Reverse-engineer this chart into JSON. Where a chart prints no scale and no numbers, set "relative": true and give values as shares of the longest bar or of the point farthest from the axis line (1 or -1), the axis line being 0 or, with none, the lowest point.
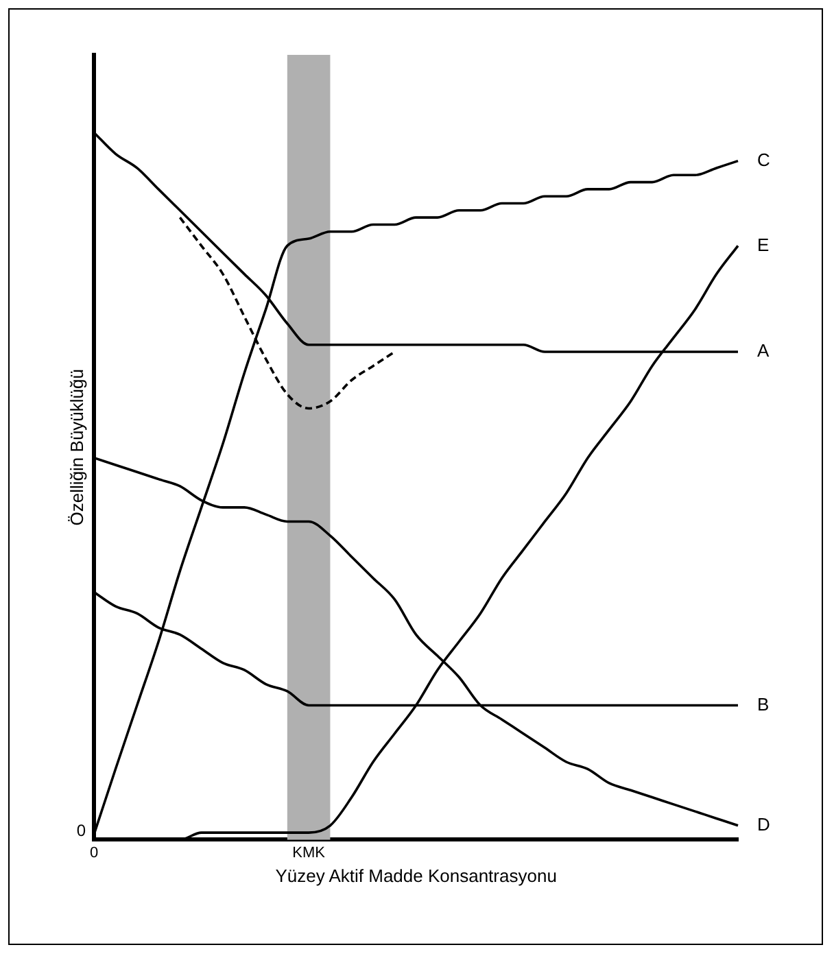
{
  "chart_data": {
    "type": "line",
    "relative": true,
    "xlabel": "Yüzey Aktif Madde Konsantrasyonu",
    "ylabel": "Özelliğin Büyüklüğü",
    "categories": [
      "0",
      null,
      null,
      null,
      null,
      null,
      null,
      null,
      null,
      null,
      "KMK",
      null,
      null,
      null,
      null,
      null,
      null,
      null,
      null,
      null,
      null,
      null,
      null,
      null,
      null,
      null,
      null,
      null,
      null,
      null,
      null
    ],
    "ref_lines": [
      {
        "axis": "x",
        "value": "KMK",
        "color": "#b0b0b0"
      }
    ],
    "annotations": [
      {
        "text": "0",
        "x": "0",
        "y": 0
      }
    ],
    "grid": false,
    "legend": false,
    "marker": "none",
    "series": [
      {
        "name": "C",
        "color": "#000000",
        "values": [
          0.008,
          0.1,
          0.19,
          0.28,
          0.38,
          0.47,
          0.56,
          0.66,
          0.75,
          0.84,
          0.85,
          0.86,
          0.86,
          0.87,
          0.87,
          0.88,
          0.88,
          0.89,
          0.89,
          0.9,
          0.9,
          0.91,
          0.91,
          0.92,
          0.92,
          0.93,
          0.93,
          0.94,
          0.94,
          0.95,
          0.96
        ]
      },
      {
        "name": "E",
        "color": "#000000",
        "values": [
          0,
          0,
          0,
          0,
          0,
          0.01,
          0.01,
          0.01,
          0.01,
          0.01,
          0.01,
          0.02,
          0.06,
          0.11,
          0.15,
          0.19,
          0.24,
          0.28,
          0.32,
          0.37,
          0.41,
          0.45,
          0.49,
          0.54,
          0.58,
          0.62,
          0.67,
          0.71,
          0.75,
          0.8,
          0.84
        ]
      },
      {
        "name": "A",
        "color": "#000000",
        "values": [
          1.0,
          0.97,
          0.95,
          0.92,
          0.89,
          0.86,
          0.83,
          0.8,
          0.77,
          0.73,
          0.7,
          0.7,
          0.7,
          0.7,
          0.7,
          0.7,
          0.7,
          0.7,
          0.7,
          0.7,
          0.7,
          0.69,
          0.69,
          0.69,
          0.69,
          0.69,
          0.69,
          0.69,
          0.69,
          0.69,
          0.69
        ]
      },
      {
        "color": "#000000",
        "line_style": "dashed",
        "values": [
          null,
          null,
          null,
          null,
          0.88,
          0.84,
          0.8,
          0.74,
          0.68,
          0.63,
          0.61,
          0.62,
          0.65,
          0.67,
          0.69,
          null,
          null,
          null,
          null,
          null,
          null,
          null,
          null,
          null,
          null,
          null,
          null,
          null,
          null,
          null,
          null
        ]
      },
      {
        "name": "B",
        "color": "#000000",
        "values": [
          0.35,
          0.33,
          0.32,
          0.3,
          0.29,
          0.27,
          0.25,
          0.24,
          0.22,
          0.21,
          0.19,
          0.19,
          0.19,
          0.19,
          0.19,
          0.19,
          0.19,
          0.19,
          0.19,
          0.19,
          0.19,
          0.19,
          0.19,
          0.19,
          0.19,
          0.19,
          0.19,
          0.19,
          0.19,
          0.19,
          0.19
        ]
      },
      {
        "name": "D",
        "color": "#000000",
        "values": [
          0.54,
          0.53,
          0.52,
          0.51,
          0.5,
          0.48,
          0.47,
          0.47,
          0.46,
          0.45,
          0.45,
          0.43,
          0.4,
          0.37,
          0.34,
          0.29,
          0.26,
          0.23,
          0.19,
          0.17,
          0.15,
          0.13,
          0.11,
          0.1,
          0.08,
          0.07,
          0.06,
          0.05,
          0.04,
          0.03,
          0.02
        ]
      }
    ]
  }
}
